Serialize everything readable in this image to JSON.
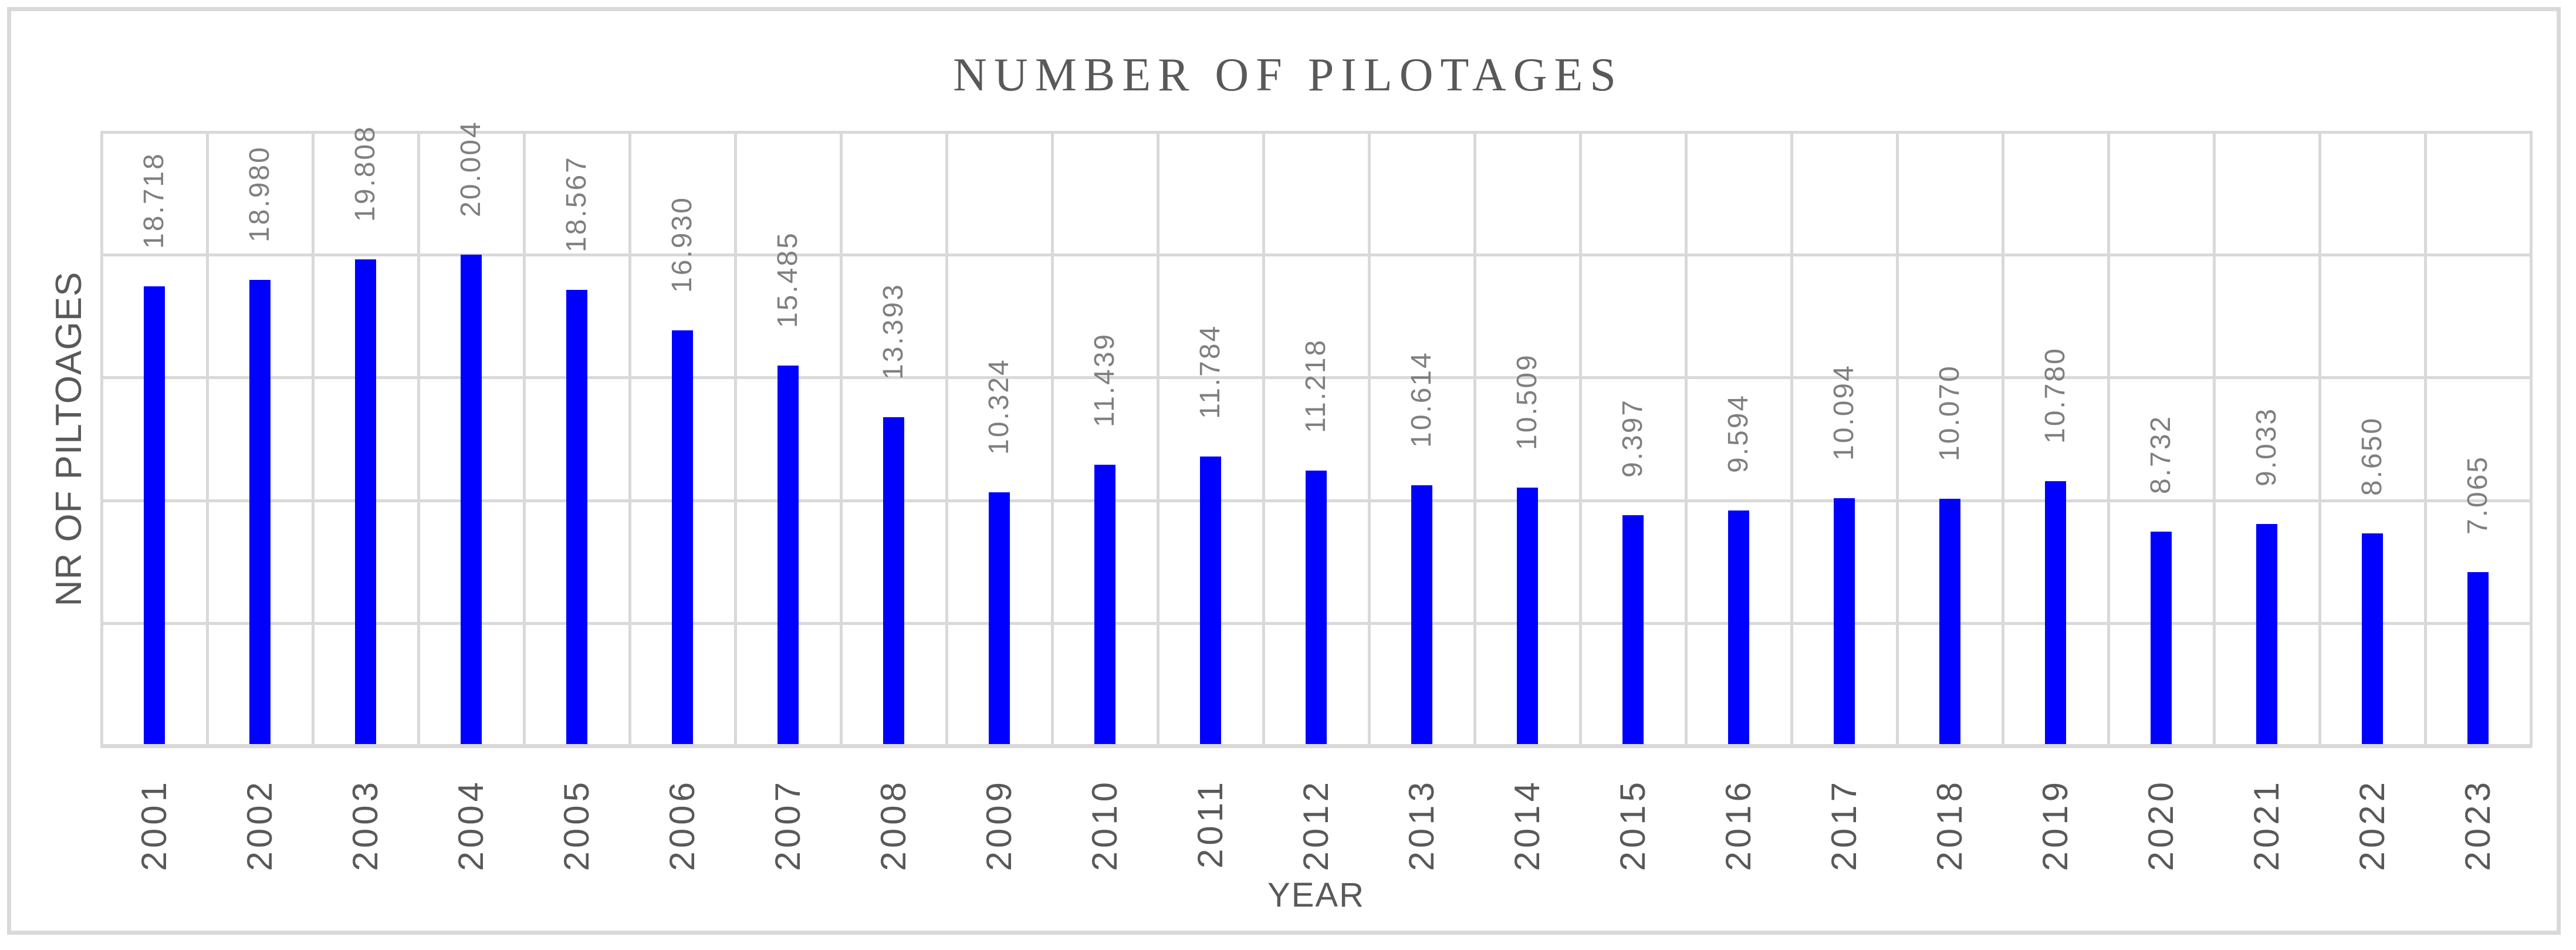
{
  "chart_data": {
    "type": "bar",
    "title": "NUMBER OF PILOTAGES",
    "xlabel": "YEAR",
    "ylabel": "NR OF PILTOAGES",
    "categories": [
      "2001",
      "2002",
      "2003",
      "2004",
      "2005",
      "2006",
      "2007",
      "2008",
      "2009",
      "2010",
      "2011",
      "2012",
      "2013",
      "2014",
      "2015",
      "2016",
      "2017",
      "2018",
      "2019",
      "2020",
      "2021",
      "2022",
      "2023"
    ],
    "values": [
      18718,
      18980,
      19808,
      20004,
      18567,
      16930,
      15485,
      13393,
      10324,
      11439,
      11784,
      11218,
      10614,
      10509,
      9397,
      9594,
      10094,
      10070,
      10780,
      8732,
      9033,
      8650,
      7065
    ],
    "value_labels": [
      "18.718",
      "18.980",
      "19.808",
      "20.004",
      "18.567",
      "16.930",
      "15.485",
      "13.393",
      "10.324",
      "11.439",
      "11.784",
      "11.218",
      "10.614",
      "10.509",
      "9.397",
      "9.594",
      "10.094",
      "10.070",
      "10.780",
      "8.732",
      "9.033",
      "8.650",
      "7.065"
    ],
    "ylim": [
      0,
      25000
    ],
    "grid_step": 5000,
    "grid": true,
    "legend": false,
    "colors": {
      "bar": "#0000FF",
      "gridline": "#D9D9D9",
      "frame": "#D9D9D9",
      "title_text": "#595959",
      "axis_text": "#595959",
      "value_label_text": "#7F7F7F"
    }
  }
}
